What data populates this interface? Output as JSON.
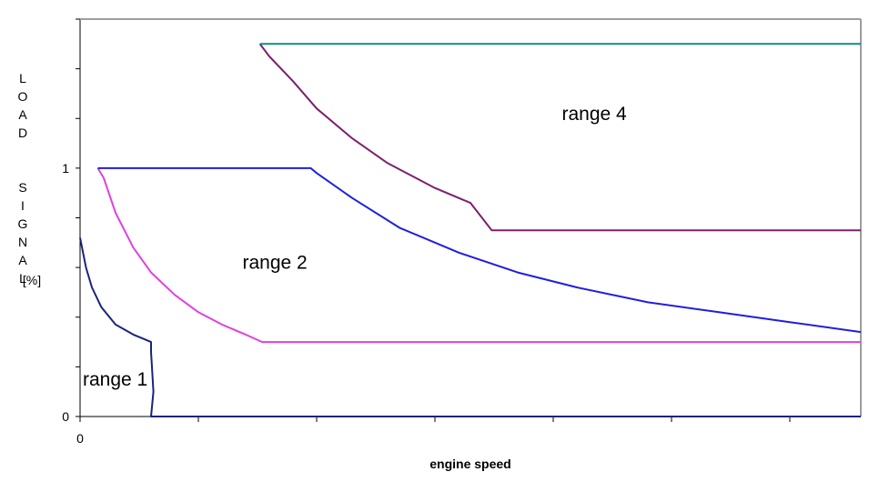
{
  "chart_data": {
    "type": "line",
    "title": "",
    "xlabel": "engine speed",
    "ylabel_letters": [
      "L",
      "O",
      "A",
      "D",
      "",
      "S",
      "I",
      "G",
      "N",
      "A",
      "L"
    ],
    "ylabel_unit": "[%]",
    "x_ticks": [
      0,
      1,
      2,
      3,
      4,
      5,
      6,
      7
    ],
    "x_tick_labels": [
      "0"
    ],
    "xlim": [
      0,
      6.6
    ],
    "y_ticks": [
      0,
      0.2,
      0.4,
      0.6,
      0.8,
      1.0,
      1.2,
      1.4,
      1.6
    ],
    "y_tick_labels": [
      {
        "value": 0,
        "label": "0"
      },
      {
        "value": 1,
        "label": "1"
      }
    ],
    "ylim": [
      0,
      1.6
    ],
    "grid": false,
    "series": [
      {
        "color": "#1a237e",
        "points": [
          [
            0.0,
            0.72
          ],
          [
            0.05,
            0.6
          ],
          [
            0.1,
            0.52
          ],
          [
            0.18,
            0.44
          ],
          [
            0.3,
            0.37
          ],
          [
            0.45,
            0.33
          ],
          [
            0.55,
            0.31
          ],
          [
            0.6,
            0.3
          ],
          [
            0.6,
            0.26
          ],
          [
            0.62,
            0.1
          ],
          [
            0.6,
            0.0
          ],
          [
            6.6,
            0.0
          ]
        ]
      },
      {
        "color": "#e040e0",
        "points": [
          [
            0.15,
            1.0
          ],
          [
            0.2,
            0.96
          ],
          [
            0.3,
            0.82
          ],
          [
            0.45,
            0.68
          ],
          [
            0.6,
            0.58
          ],
          [
            0.8,
            0.49
          ],
          [
            1.0,
            0.42
          ],
          [
            1.2,
            0.37
          ],
          [
            1.4,
            0.33
          ],
          [
            1.54,
            0.3
          ],
          [
            6.6,
            0.3
          ]
        ]
      },
      {
        "color": "#1f1fe0",
        "points": [
          [
            0.15,
            1.0
          ],
          [
            1.95,
            1.0
          ],
          [
            2.0,
            0.98
          ],
          [
            2.3,
            0.88
          ],
          [
            2.7,
            0.76
          ],
          [
            3.2,
            0.66
          ],
          [
            3.7,
            0.58
          ],
          [
            4.2,
            0.52
          ],
          [
            4.8,
            0.46
          ],
          [
            5.4,
            0.42
          ],
          [
            6.0,
            0.38
          ],
          [
            6.6,
            0.34
          ]
        ]
      },
      {
        "color": "#7b1f6e",
        "points": [
          [
            1.52,
            1.5
          ],
          [
            1.6,
            1.45
          ],
          [
            1.8,
            1.35
          ],
          [
            2.0,
            1.24
          ],
          [
            2.3,
            1.12
          ],
          [
            2.6,
            1.02
          ],
          [
            3.0,
            0.92
          ],
          [
            3.3,
            0.86
          ],
          [
            3.48,
            0.75
          ],
          [
            6.6,
            0.75
          ]
        ]
      },
      {
        "color": "#0f8a8a",
        "points": [
          [
            1.52,
            1.5
          ],
          [
            6.6,
            1.5
          ]
        ]
      }
    ],
    "annotations": [
      {
        "text": "range 1",
        "x": 0.0,
        "y": 0.15
      },
      {
        "text": "range 2",
        "x": 1.35,
        "y": 0.62
      },
      {
        "text": "range 4",
        "x": 4.05,
        "y": 1.22
      }
    ]
  }
}
